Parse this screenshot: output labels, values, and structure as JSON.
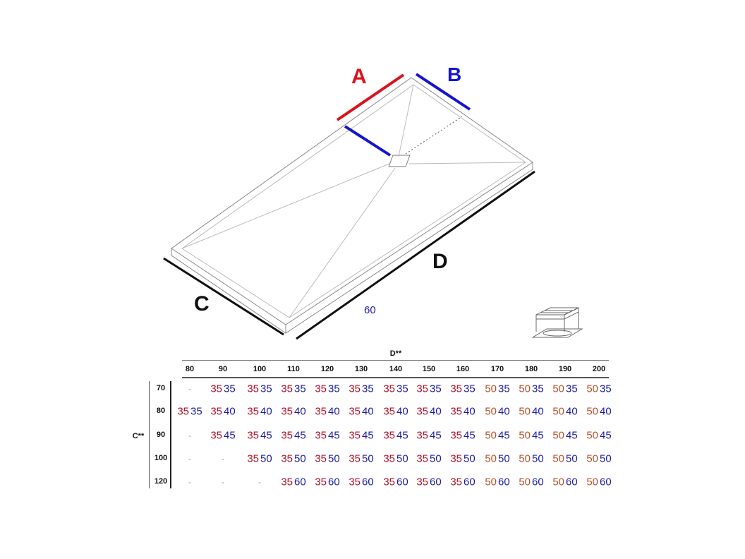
{
  "diagram": {
    "label_a": "A",
    "label_b": "B",
    "label_c": "C",
    "label_d": "D",
    "dimension_note": "60",
    "colors": {
      "a_line": "#d9141e",
      "b_line": "#1414d0",
      "outline": "#111111"
    },
    "drain_icon": "drain-grate-icon"
  },
  "table": {
    "column_header": "D**",
    "row_header": "C**",
    "columns": [
      "80",
      "90",
      "100",
      "110",
      "120",
      "130",
      "140",
      "150",
      "160",
      "170",
      "180",
      "190",
      "200"
    ],
    "rows": [
      {
        "c": "70",
        "cells": [
          "-",
          "35 35",
          "35 35",
          "35 35",
          "35 35",
          "35 35",
          "35 35",
          "35 35",
          "35 35",
          "50 35",
          "50 35",
          "50 35",
          "50 35"
        ]
      },
      {
        "c": "80",
        "cells": [
          "35 35",
          "35 40",
          "35 40",
          "35 40",
          "35 40",
          "35 40",
          "35 40",
          "35 40",
          "35 40",
          "50 40",
          "50 40",
          "50 40",
          "50 40"
        ]
      },
      {
        "c": "90",
        "cells": [
          "-",
          "35 45",
          "35 45",
          "35 45",
          "35 45",
          "35 45",
          "35 45",
          "35 45",
          "35 45",
          "50 45",
          "50 45",
          "50 45",
          "50 45"
        ]
      },
      {
        "c": "100",
        "cells": [
          "-",
          "-",
          "35 50",
          "35 50",
          "35 50",
          "35 50",
          "35 50",
          "35 50",
          "35 50",
          "50 50",
          "50 50",
          "50 50",
          "50 50"
        ]
      },
      {
        "c": "120",
        "cells": [
          "-",
          "-",
          "-",
          "35 60",
          "35 60",
          "35 60",
          "35 60",
          "35 60",
          "35 60",
          "50 60",
          "50 60",
          "50 60",
          "50 60"
        ]
      }
    ],
    "colors": {
      "a_35": "#b3122a",
      "a_50": "#b8522c",
      "b": "#1c1ca0"
    }
  }
}
